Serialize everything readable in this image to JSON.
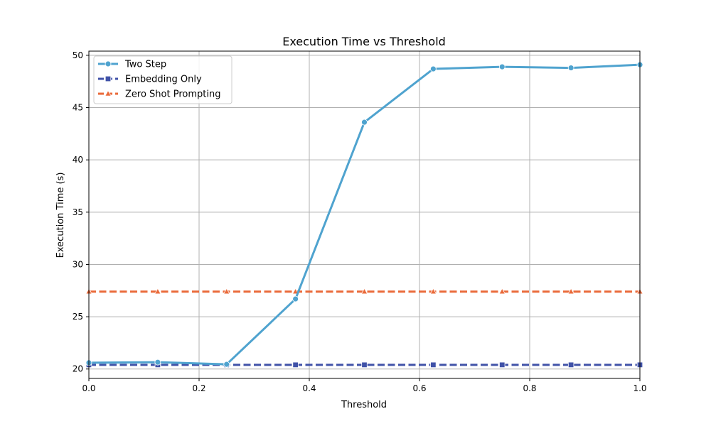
{
  "chart_data": {
    "type": "line",
    "title": "Execution Time vs Threshold",
    "xlabel": "Threshold",
    "ylabel": "Execution Time (s)",
    "xlim": [
      0.0,
      1.0
    ],
    "ylim": [
      19.1,
      50.4
    ],
    "xticks": [
      0.0,
      0.2,
      0.4,
      0.6,
      0.8,
      1.0
    ],
    "xtick_labels": [
      "0.0",
      "0.2",
      "0.4",
      "0.6",
      "0.8",
      "1.0"
    ],
    "yticks": [
      20,
      25,
      30,
      35,
      40,
      45,
      50
    ],
    "ytick_labels": [
      "20",
      "25",
      "30",
      "35",
      "40",
      "45",
      "50"
    ],
    "grid": true,
    "legend_position": "top-left",
    "x": [
      0.0,
      0.125,
      0.25,
      0.375,
      0.5,
      0.625,
      0.75,
      0.875,
      1.0
    ],
    "series": [
      {
        "name": "Two Step",
        "color": "#4fa3cf",
        "line_style": "solid",
        "marker": "circle",
        "values": [
          20.6,
          20.65,
          20.45,
          26.7,
          43.6,
          48.7,
          48.9,
          48.8,
          49.1
        ]
      },
      {
        "name": "Embedding Only",
        "color": "#4052a8",
        "line_style": "dashed",
        "marker": "square",
        "values": [
          20.4,
          20.4,
          20.4,
          20.4,
          20.4,
          20.4,
          20.4,
          20.4,
          20.4
        ]
      },
      {
        "name": "Zero Shot Prompting",
        "color": "#ea6a3a",
        "line_style": "dashed",
        "marker": "triangle",
        "values": [
          27.4,
          27.4,
          27.4,
          27.4,
          27.4,
          27.4,
          27.4,
          27.4,
          27.4
        ]
      }
    ]
  }
}
